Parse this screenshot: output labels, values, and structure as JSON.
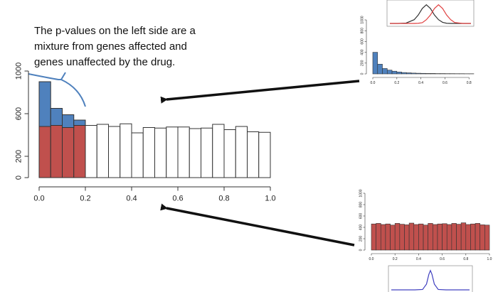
{
  "chart_data": [
    {
      "type": "histogram",
      "annotation": [
        "The p-values on the left side are a",
        "mixture from genes affected and",
        "genes unaffected by the drug."
      ],
      "bins": [
        0,
        0.05,
        0.1,
        0.15,
        0.2,
        0.25,
        0.3,
        0.35,
        0.4,
        0.45,
        0.5,
        0.55,
        0.6,
        0.65,
        0.7,
        0.75,
        0.8,
        0.85,
        0.9,
        0.95,
        1.0
      ],
      "series": [
        {
          "color": "#c0504d",
          "values": [
            480,
            490,
            470,
            490,
            null,
            null,
            null,
            null,
            null,
            null,
            null,
            null,
            null,
            null,
            null,
            null,
            null,
            null,
            null,
            null
          ]
        },
        {
          "color": "#4f81bd",
          "values": [
            420,
            160,
            120,
            50,
            null,
            null,
            null,
            null,
            null,
            null,
            null,
            null,
            null,
            null,
            null,
            null,
            null,
            null,
            null,
            null
          ]
        },
        {
          "color": "#ffffff",
          "values": [
            null,
            null,
            null,
            null,
            490,
            500,
            480,
            505,
            420,
            470,
            465,
            475,
            475,
            460,
            465,
            500,
            450,
            480,
            430,
            425
          ]
        }
      ],
      "xlim": [
        0,
        1
      ],
      "ylim": [
        0,
        1000
      ],
      "xticks": [
        {
          "value": 0,
          "label": "0.0"
        },
        {
          "value": 0.2,
          "label": "0.2"
        },
        {
          "value": 0.4,
          "label": "0.4"
        },
        {
          "value": 0.6,
          "label": "0.6"
        },
        {
          "value": 0.8,
          "label": "0.8"
        },
        {
          "value": 1,
          "label": "1.0"
        }
      ],
      "yticks": [
        0,
        200,
        600,
        1000
      ]
    },
    {
      "type": "histogram",
      "bins": [
        0,
        0.04,
        0.08,
        0.12,
        0.16,
        0.2,
        0.24,
        0.28,
        0.32,
        0.36,
        0.4,
        0.44,
        0.48,
        0.52,
        0.56,
        0.6,
        0.64,
        0.68,
        0.72,
        0.76,
        0.8,
        0.84
      ],
      "series": [
        {
          "color": "#4f81bd",
          "values": [
            400,
            180,
            100,
            70,
            50,
            35,
            25,
            20,
            15,
            12,
            10,
            8,
            8,
            6,
            6,
            5,
            5,
            4,
            4,
            3,
            3
          ]
        }
      ],
      "xlim": [
        0,
        0.84
      ],
      "ylim": [
        0,
        1000
      ],
      "xticks": [
        {
          "value": 0,
          "label": "0.0"
        },
        {
          "value": 0.2,
          "label": "0.2"
        },
        {
          "value": 0.4,
          "label": "0.4"
        },
        {
          "value": 0.6,
          "label": "0.6"
        },
        {
          "value": 0.8,
          "label": "0.8"
        }
      ],
      "yticks": [
        0,
        200,
        400,
        600,
        800,
        1000
      ]
    },
    {
      "type": "histogram",
      "bins": [
        0,
        0.04,
        0.08,
        0.12,
        0.16,
        0.2,
        0.24,
        0.28,
        0.32,
        0.36,
        0.4,
        0.44,
        0.48,
        0.52,
        0.56,
        0.6,
        0.64,
        0.68,
        0.72,
        0.76,
        0.8,
        0.84,
        0.88,
        0.92,
        0.96,
        1.0
      ],
      "series": [
        {
          "color": "#c0504d",
          "values": [
            460,
            470,
            450,
            460,
            440,
            470,
            455,
            445,
            475,
            450,
            460,
            440,
            470,
            450,
            460,
            465,
            450,
            470,
            455,
            480,
            450,
            460,
            470,
            445,
            440
          ]
        }
      ],
      "xlim": [
        0,
        1
      ],
      "ylim": [
        0,
        1000
      ],
      "xticks": [
        {
          "value": 0,
          "label": "0.0"
        },
        {
          "value": 0.2,
          "label": "0.2"
        },
        {
          "value": 0.4,
          "label": "0.4"
        },
        {
          "value": 0.6,
          "label": "0.6"
        },
        {
          "value": 0.8,
          "label": "0.8"
        },
        {
          "value": 1,
          "label": "1.0"
        }
      ],
      "yticks": [
        0,
        200,
        400,
        600,
        800,
        1000
      ]
    },
    {
      "type": "line",
      "x": [
        0,
        0.1,
        0.2,
        0.3,
        0.35,
        0.4,
        0.45,
        0.5,
        0.55,
        0.6,
        0.65,
        0.7,
        0.75,
        0.8,
        0.9,
        1.0
      ],
      "series": [
        {
          "color": "#333333",
          "values": [
            0,
            0,
            0.02,
            0.2,
            0.45,
            0.8,
            1.0,
            0.8,
            0.45,
            0.2,
            0.06,
            0.01,
            0,
            0,
            0,
            0
          ]
        },
        {
          "color": "#e04040",
          "values": [
            0,
            0,
            0,
            0,
            0.01,
            0.04,
            0.2,
            0.45,
            0.8,
            1.0,
            0.8,
            0.45,
            0.2,
            0.05,
            0,
            0
          ]
        }
      ],
      "xlim": [
        0,
        1
      ],
      "ylim": [
        0,
        1.1
      ]
    },
    {
      "type": "line",
      "x": [
        0,
        0.3,
        0.4,
        0.45,
        0.48,
        0.5,
        0.52,
        0.55,
        0.6,
        0.7,
        1.0
      ],
      "series": [
        {
          "color": "#4040c0",
          "values": [
            0,
            0,
            0.02,
            0.3,
            0.8,
            1.0,
            0.8,
            0.3,
            0.02,
            0,
            0
          ]
        }
      ],
      "xlim": [
        0,
        1
      ],
      "ylim": [
        0,
        1.1
      ]
    }
  ]
}
